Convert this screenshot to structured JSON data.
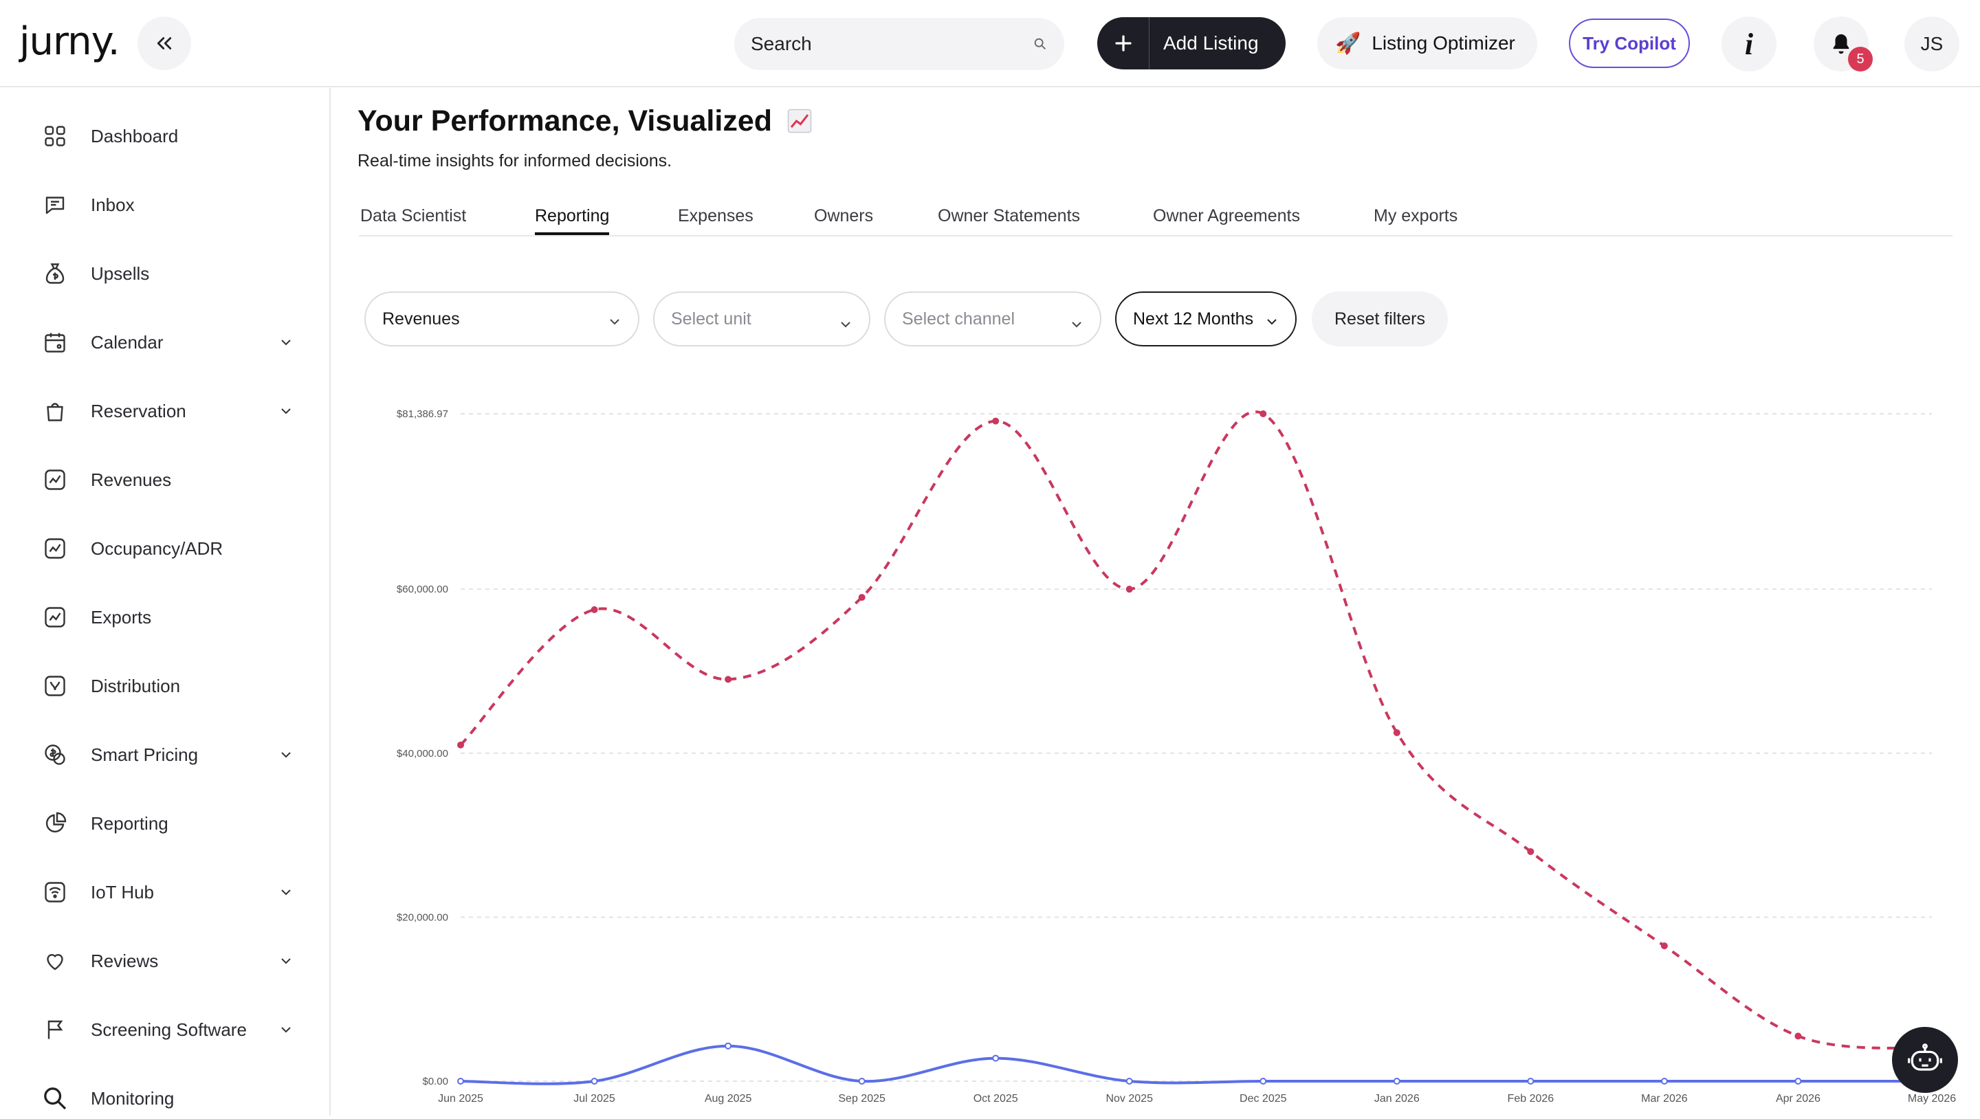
{
  "app": {
    "logo_text": "jurny."
  },
  "header": {
    "search_placeholder": "Search",
    "add_listing_label": "Add Listing",
    "optimizer_label": "Listing Optimizer",
    "copilot_label": "Try Copilot",
    "info_label": "i",
    "notification_count": "5",
    "avatar_initials": "JS"
  },
  "sidebar": {
    "items": [
      {
        "label": "Dashboard",
        "icon": "grid-icon",
        "expandable": false
      },
      {
        "label": "Inbox",
        "icon": "chat-icon",
        "expandable": false
      },
      {
        "label": "Upsells",
        "icon": "money-bag-icon",
        "expandable": false
      },
      {
        "label": "Calendar",
        "icon": "calendar-icon",
        "expandable": true
      },
      {
        "label": "Reservation",
        "icon": "bag-icon",
        "expandable": true
      },
      {
        "label": "Revenues",
        "icon": "trend-icon",
        "expandable": false
      },
      {
        "label": "Occupancy/ADR",
        "icon": "trend-icon",
        "expandable": false
      },
      {
        "label": "Exports",
        "icon": "trend-icon",
        "expandable": false
      },
      {
        "label": "Distribution",
        "icon": "distribution-icon",
        "expandable": false
      },
      {
        "label": "Smart Pricing",
        "icon": "dollar-icon",
        "expandable": true
      },
      {
        "label": "Reporting",
        "icon": "pie-icon",
        "expandable": false
      },
      {
        "label": "IoT Hub",
        "icon": "wifi-icon",
        "expandable": true
      },
      {
        "label": "Reviews",
        "icon": "heart-icon",
        "expandable": true
      },
      {
        "label": "Screening Software",
        "icon": "flag-icon",
        "expandable": true
      },
      {
        "label": "Monitoring",
        "icon": "search-icon",
        "expandable": false
      }
    ]
  },
  "main": {
    "title": "Your Performance, Visualized",
    "subtitle": "Real-time insights for informed decisions.",
    "tabs": [
      {
        "label": "Data Scientist",
        "active": false
      },
      {
        "label": "Reporting",
        "active": true
      },
      {
        "label": "Expenses",
        "active": false
      },
      {
        "label": "Owners",
        "active": false
      },
      {
        "label": "Owner Statements",
        "active": false
      },
      {
        "label": "Owner Agreements",
        "active": false
      },
      {
        "label": "My exports",
        "active": false
      }
    ],
    "filters": {
      "metric": "Revenues",
      "unit_placeholder": "Select unit",
      "channel_placeholder": "Select channel",
      "period": "Next 12 Months",
      "reset_label": "Reset filters"
    }
  },
  "colors": {
    "accent_dark": "#1e1f26",
    "copilot_purple": "#5b3fd0",
    "badge_red": "#d83a56",
    "series_dashed": "#c9385e",
    "series_solid": "#5b6ee8"
  },
  "chart_data": {
    "type": "line",
    "x": [
      "Jun 2025",
      "Jul 2025",
      "Aug 2025",
      "Sep 2025",
      "Oct 2025",
      "Nov 2025",
      "Dec 2025",
      "Jan 2026",
      "Feb 2026",
      "Mar 2026",
      "Apr 2026",
      "May 2026"
    ],
    "y_ticks": [
      "$0.00",
      "$20,000.00",
      "$40,000.00",
      "$60,000.00",
      "$81,386.97"
    ],
    "y_tick_values": [
      0,
      20000,
      40000,
      60000,
      81386.97
    ],
    "ylim": [
      0,
      81386.97
    ],
    "grid": true,
    "series": [
      {
        "style": "dashed",
        "color": "#c9385e",
        "values": [
          41000,
          57500,
          49000,
          59000,
          80500,
          60000,
          81386.97,
          42500,
          28000,
          16500,
          5500,
          4000
        ]
      },
      {
        "style": "solid",
        "color": "#5b6ee8",
        "values": [
          0,
          0,
          4300,
          0,
          2800,
          0,
          0,
          0,
          0,
          0,
          0,
          0
        ]
      }
    ]
  }
}
